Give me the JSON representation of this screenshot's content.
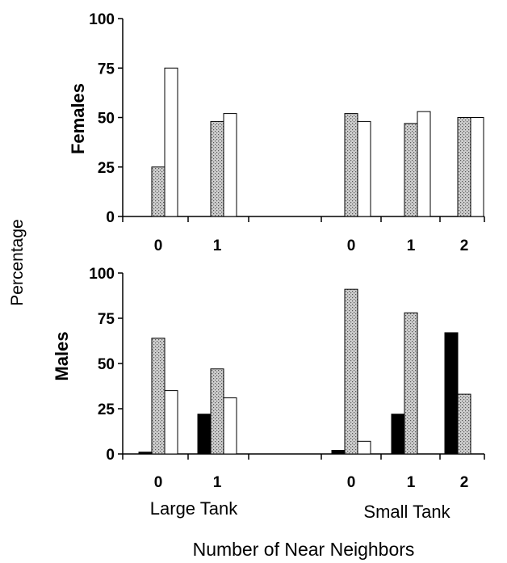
{
  "chart_data": [
    {
      "type": "bar",
      "panel": "Females",
      "ylabel": "Females",
      "ylim": [
        0,
        100
      ],
      "yticks": [
        "0",
        "25",
        "50",
        "75",
        "100"
      ],
      "categories": [
        "0",
        "1",
        "0",
        "1",
        "2"
      ],
      "series": [
        {
          "values": [
            0,
            0,
            0,
            0,
            0
          ],
          "color": "#000000"
        },
        {
          "values": [
            25,
            48,
            52,
            47,
            50
          ],
          "color": "#bdbdbd",
          "pattern": "stipple"
        },
        {
          "values": [
            75,
            52,
            48,
            53,
            50
          ],
          "color": "#ffffff"
        }
      ]
    },
    {
      "type": "bar",
      "panel": "Males",
      "ylabel": "Males",
      "ylim": [
        0,
        100
      ],
      "yticks": [
        "0",
        "25",
        "50",
        "75",
        "100"
      ],
      "categories": [
        "0",
        "1",
        "0",
        "1",
        "2"
      ],
      "series": [
        {
          "values": [
            1,
            22,
            2,
            22,
            67
          ],
          "color": "#000000"
        },
        {
          "values": [
            64,
            47,
            91,
            78,
            33
          ],
          "color": "#bdbdbd",
          "pattern": "stipple"
        },
        {
          "values": [
            35,
            31,
            7,
            0,
            0
          ],
          "color": "#ffffff"
        }
      ]
    }
  ],
  "shared": {
    "ylabel": "Percentage",
    "xlabel": "Number of Near Neighbors",
    "groups": [
      "Large Tank",
      "Small Tank"
    ]
  }
}
